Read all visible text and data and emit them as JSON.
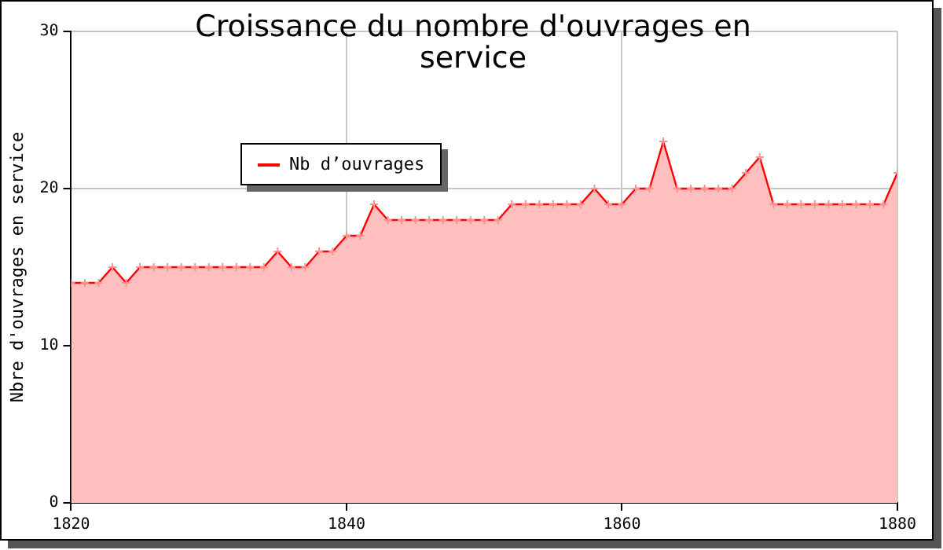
{
  "chart_data": {
    "type": "area",
    "title": "Croissance du nombre d'ouvrages en service",
    "ylabel": "Nbre d'ouvrages en service",
    "x": [
      1820,
      1821,
      1822,
      1823,
      1824,
      1825,
      1826,
      1827,
      1828,
      1829,
      1830,
      1831,
      1832,
      1833,
      1834,
      1835,
      1836,
      1837,
      1838,
      1839,
      1840,
      1841,
      1842,
      1843,
      1844,
      1845,
      1846,
      1847,
      1848,
      1849,
      1850,
      1851,
      1852,
      1853,
      1854,
      1855,
      1856,
      1857,
      1858,
      1859,
      1860,
      1861,
      1862,
      1863,
      1864,
      1865,
      1866,
      1867,
      1868,
      1869,
      1870,
      1871,
      1872,
      1873,
      1874,
      1875,
      1876,
      1877,
      1878,
      1879,
      1880
    ],
    "series": [
      {
        "name": "Nb d’ouvrages",
        "color": "#ff0000",
        "values": [
          14,
          14,
          14,
          15,
          14,
          15,
          15,
          15,
          15,
          15,
          15,
          15,
          15,
          15,
          15,
          16,
          15,
          15,
          16,
          16,
          17,
          17,
          19,
          18,
          18,
          18,
          18,
          18,
          18,
          18,
          18,
          18,
          19,
          19,
          19,
          19,
          19,
          19,
          20,
          19,
          19,
          20,
          20,
          23,
          20,
          20,
          20,
          20,
          20,
          21,
          22,
          19,
          19,
          19,
          19,
          19,
          19,
          19,
          19,
          19,
          21
        ]
      }
    ],
    "xlim": [
      1820,
      1880
    ],
    "xticks": [
      1820,
      1840,
      1860,
      1880
    ],
    "ylim": [
      0,
      30
    ],
    "yticks": [
      0,
      10,
      20,
      30
    ],
    "grid": true,
    "legend": "top left",
    "marker": "cross",
    "line_style": "solid"
  }
}
